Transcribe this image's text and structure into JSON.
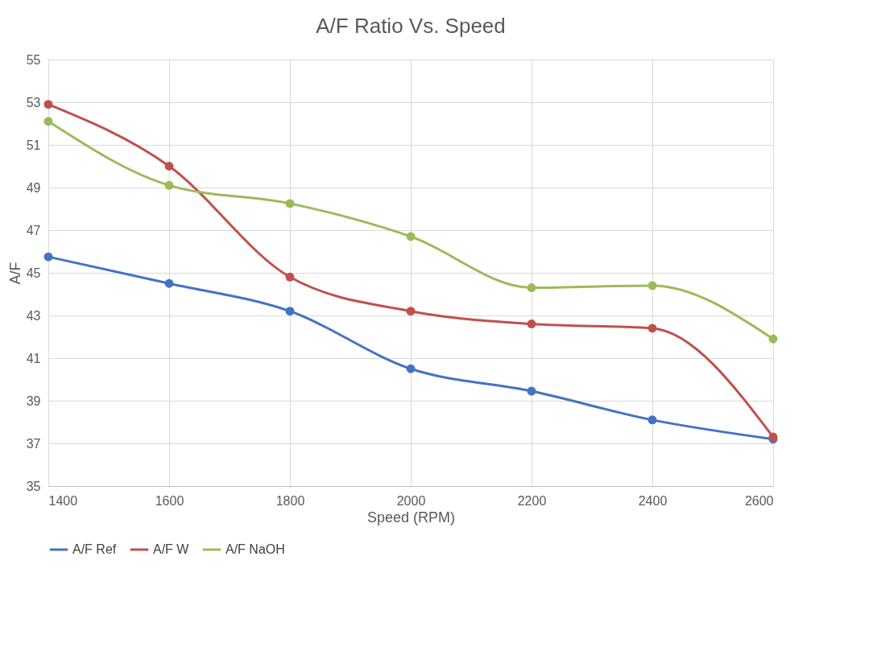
{
  "chart_data": {
    "type": "line",
    "title": "A/F Ratio Vs. Speed",
    "xlabel": "Speed (RPM)",
    "ylabel": "A/F",
    "x": [
      1400,
      1600,
      1800,
      2000,
      2200,
      2400,
      2600
    ],
    "series": [
      {
        "name": "A/F Ref",
        "color": "#4472c4",
        "values": [
          45.75,
          44.5,
          43.2,
          40.5,
          39.45,
          38.1,
          37.2
        ]
      },
      {
        "name": "A/F W",
        "color": "#c0504d",
        "values": [
          52.9,
          50.0,
          44.8,
          43.2,
          42.6,
          42.4,
          37.3
        ]
      },
      {
        "name": "A/F NaOH",
        "color": "#9bbb59",
        "values": [
          52.1,
          49.1,
          48.25,
          46.7,
          44.3,
          44.4,
          41.9
        ]
      }
    ],
    "xlim": [
      1400,
      2600
    ],
    "xticks": [
      1400,
      1600,
      1800,
      2000,
      2200,
      2400,
      2600
    ],
    "ylim": [
      35,
      55
    ],
    "yticks": [
      35,
      37,
      39,
      41,
      43,
      45,
      47,
      49,
      51,
      53,
      55
    ],
    "grid": true,
    "legend": "bottom",
    "marker": "circle",
    "line_style": "solid"
  }
}
